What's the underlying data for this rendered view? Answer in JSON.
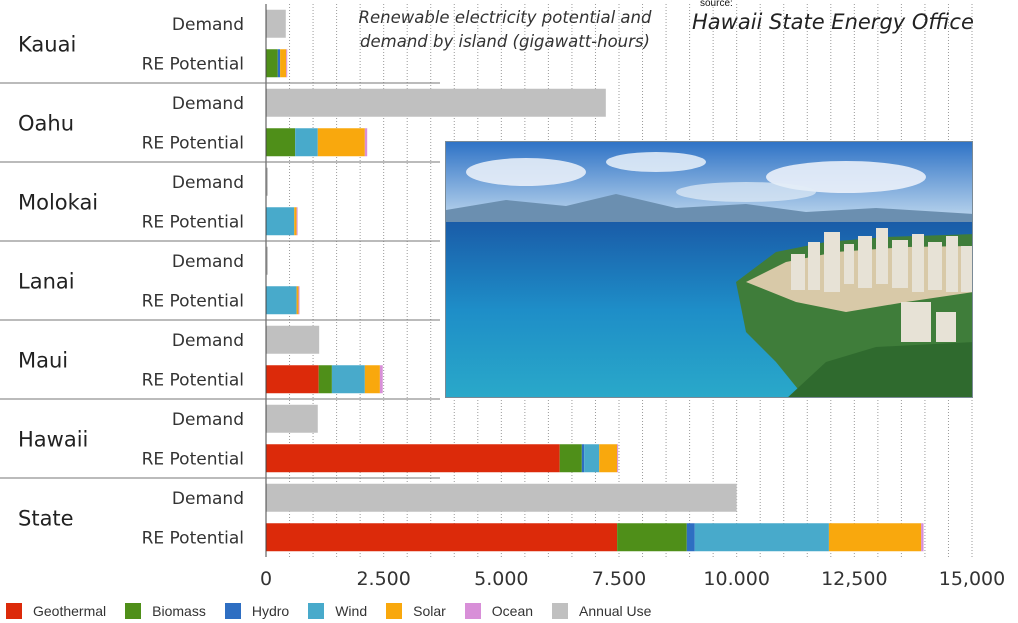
{
  "chart_data": {
    "type": "bar",
    "orientation": "horizontal",
    "stacked": true,
    "title": "Renewable electricity potential and demand by island (gigawatt-hours)",
    "source_label": "source:",
    "source": "Hawaii State Energy Office",
    "groups": [
      "Kauai",
      "Oahu",
      "Molokai",
      "Lanai",
      "Maui",
      "Hawaii",
      "State"
    ],
    "row_labels": [
      "Demand",
      "RE Potential"
    ],
    "xlim": [
      0,
      15000
    ],
    "x_ticks": [
      0,
      2500,
      5000,
      7500,
      10000,
      12500,
      15000
    ],
    "x_tick_labels": [
      "0",
      "2.500",
      "5.000",
      "7.500",
      "10.000",
      "12,500",
      "15,000"
    ],
    "grid": "vertical dotted every 500",
    "legend_position": "bottom",
    "series": [
      {
        "name": "Geothermal",
        "color": "#dc2a0a",
        "demand": [
          0,
          0,
          0,
          0,
          0,
          0,
          0
        ],
        "potential": [
          0,
          0,
          0,
          0,
          1120,
          6240,
          7460
        ]
      },
      {
        "name": "Biomass",
        "color": "#4f8f19",
        "demand": [
          0,
          0,
          0,
          0,
          0,
          0,
          0
        ],
        "potential": [
          250,
          620,
          0,
          0,
          280,
          470,
          1480
        ]
      },
      {
        "name": "Hydro",
        "color": "#2e6ec2",
        "demand": [
          0,
          0,
          0,
          0,
          0,
          0,
          0
        ],
        "potential": [
          50,
          0,
          0,
          0,
          0,
          50,
          170
        ]
      },
      {
        "name": "Wind",
        "color": "#48aacb",
        "demand": [
          0,
          0,
          0,
          0,
          0,
          0,
          0
        ],
        "potential": [
          0,
          480,
          600,
          650,
          700,
          320,
          2850
        ]
      },
      {
        "name": "Solar",
        "color": "#f9a80d",
        "demand": [
          0,
          0,
          0,
          0,
          0,
          0,
          0
        ],
        "potential": [
          130,
          1000,
          50,
          40,
          320,
          380,
          1960
        ]
      },
      {
        "name": "Ocean",
        "color": "#d88fd8",
        "demand": [
          0,
          0,
          0,
          0,
          0,
          0,
          0
        ],
        "potential": [
          20,
          50,
          10,
          10,
          60,
          20,
          50
        ]
      },
      {
        "name": "Annual Use",
        "color": "#c0c0c0",
        "demand": [
          420,
          7220,
          40,
          40,
          1130,
          1100,
          10000
        ],
        "potential": [
          0,
          0,
          0,
          0,
          0,
          0,
          0
        ]
      }
    ]
  },
  "photo": {
    "description_icon": "honolulu-coastline-photo"
  }
}
